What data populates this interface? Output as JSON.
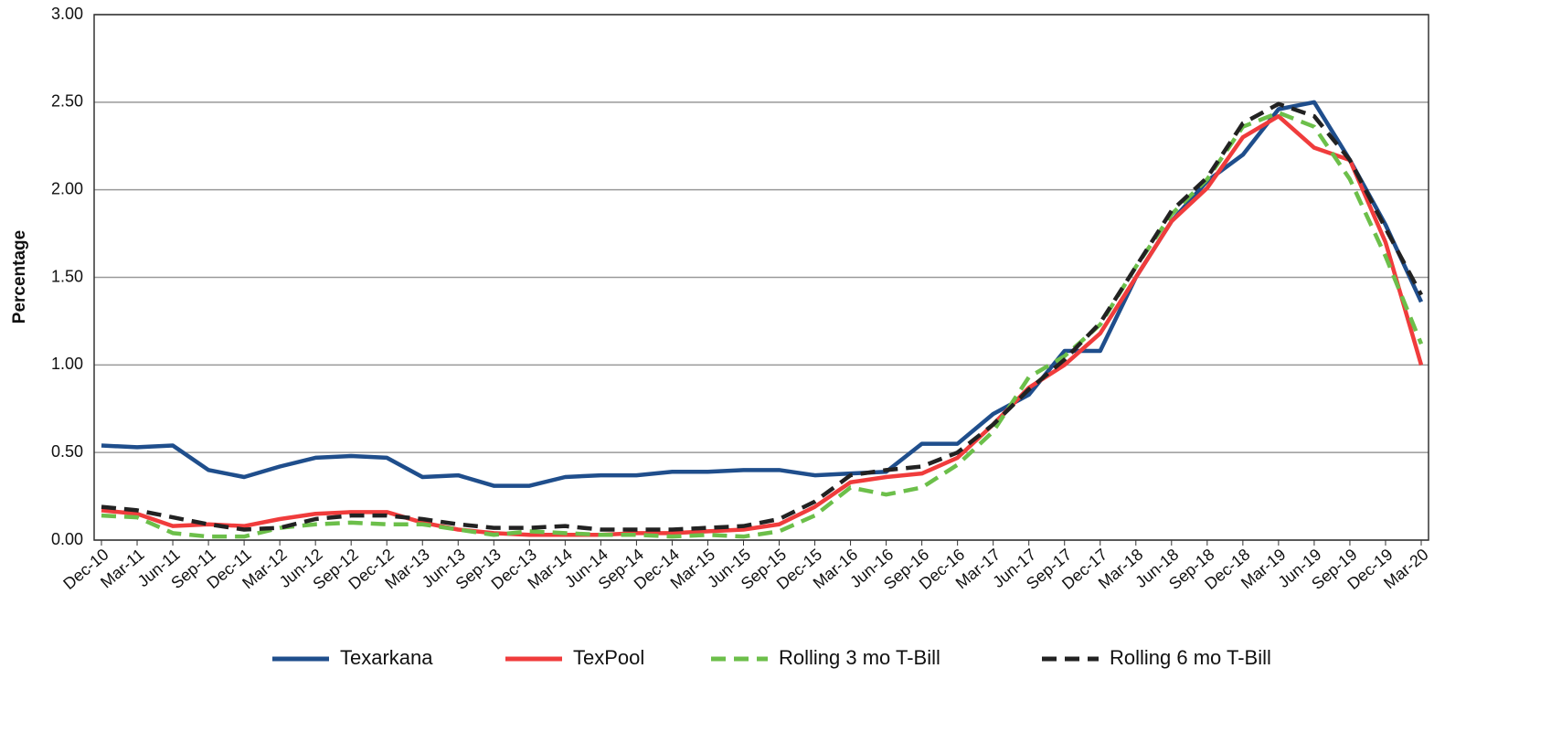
{
  "chart_data": {
    "type": "line",
    "y_label": "Percentage",
    "categories": [
      "Dec-10",
      "Mar-11",
      "Jun-11",
      "Sep-11",
      "Dec-11",
      "Mar-12",
      "Jun-12",
      "Sep-12",
      "Dec-12",
      "Mar-13",
      "Jun-13",
      "Sep-13",
      "Dec-13",
      "Mar-14",
      "Jun-14",
      "Sep-14",
      "Dec-14",
      "Mar-15",
      "Jun-15",
      "Sep-15",
      "Dec-15",
      "Mar-16",
      "Jun-16",
      "Sep-16",
      "Dec-16",
      "Mar-17",
      "Jun-17",
      "Sep-17",
      "Dec-17",
      "Mar-18",
      "Jun-18",
      "Sep-18",
      "Dec-18",
      "Mar-19",
      "Jun-19",
      "Sep-19",
      "Dec-19",
      "Mar-20"
    ],
    "series": [
      {
        "name": "Texarkana",
        "color": "#1f4e8c",
        "dash": false,
        "values": [
          0.54,
          0.53,
          0.54,
          0.4,
          0.36,
          0.42,
          0.47,
          0.48,
          0.47,
          0.36,
          0.37,
          0.31,
          0.31,
          0.36,
          0.37,
          0.37,
          0.39,
          0.39,
          0.4,
          0.4,
          0.37,
          0.38,
          0.39,
          0.55,
          0.55,
          0.72,
          0.83,
          1.08,
          1.08,
          1.5,
          1.82,
          2.05,
          2.2,
          2.46,
          2.5,
          2.17,
          1.8,
          1.36
        ]
      },
      {
        "name": "TexPool",
        "color": "#f03c3c",
        "dash": false,
        "values": [
          0.17,
          0.15,
          0.08,
          0.09,
          0.08,
          0.12,
          0.15,
          0.16,
          0.16,
          0.1,
          0.06,
          0.04,
          0.03,
          0.03,
          0.03,
          0.04,
          0.04,
          0.05,
          0.06,
          0.09,
          0.19,
          0.33,
          0.36,
          0.38,
          0.47,
          0.66,
          0.87,
          1.0,
          1.18,
          1.5,
          1.82,
          2.01,
          2.3,
          2.42,
          2.24,
          2.17,
          1.7,
          1.0
        ]
      },
      {
        "name": "Rolling 3 mo T-Bill",
        "color": "#6cbf4a",
        "dash": true,
        "values": [
          0.14,
          0.13,
          0.04,
          0.02,
          0.02,
          0.07,
          0.09,
          0.1,
          0.09,
          0.09,
          0.06,
          0.03,
          0.05,
          0.04,
          0.03,
          0.03,
          0.02,
          0.03,
          0.02,
          0.05,
          0.14,
          0.3,
          0.26,
          0.3,
          0.43,
          0.62,
          0.93,
          1.05,
          1.23,
          1.56,
          1.86,
          2.06,
          2.36,
          2.44,
          2.36,
          2.06,
          1.62,
          1.12
        ]
      },
      {
        "name": "Rolling 6 mo T-Bill",
        "color": "#222222",
        "dash": true,
        "values": [
          0.19,
          0.17,
          0.13,
          0.09,
          0.06,
          0.07,
          0.12,
          0.14,
          0.14,
          0.12,
          0.09,
          0.07,
          0.07,
          0.08,
          0.06,
          0.06,
          0.06,
          0.07,
          0.08,
          0.12,
          0.22,
          0.37,
          0.4,
          0.42,
          0.5,
          0.66,
          0.86,
          1.03,
          1.24,
          1.56,
          1.88,
          2.07,
          2.38,
          2.49,
          2.42,
          2.17,
          1.78,
          1.4
        ]
      }
    ],
    "ylim": [
      0,
      3
    ],
    "yticks": [
      {
        "value": 0,
        "label": "0.00"
      },
      {
        "value": 0.5,
        "label": "0.50"
      },
      {
        "value": 1,
        "label": "1.00"
      },
      {
        "value": 1.5,
        "label": "1.50"
      },
      {
        "value": 2,
        "label": "2.00"
      },
      {
        "value": 2.5,
        "label": "2.50"
      },
      {
        "value": 3,
        "label": "3.00"
      }
    ],
    "grid": true,
    "legend": "bottom"
  }
}
